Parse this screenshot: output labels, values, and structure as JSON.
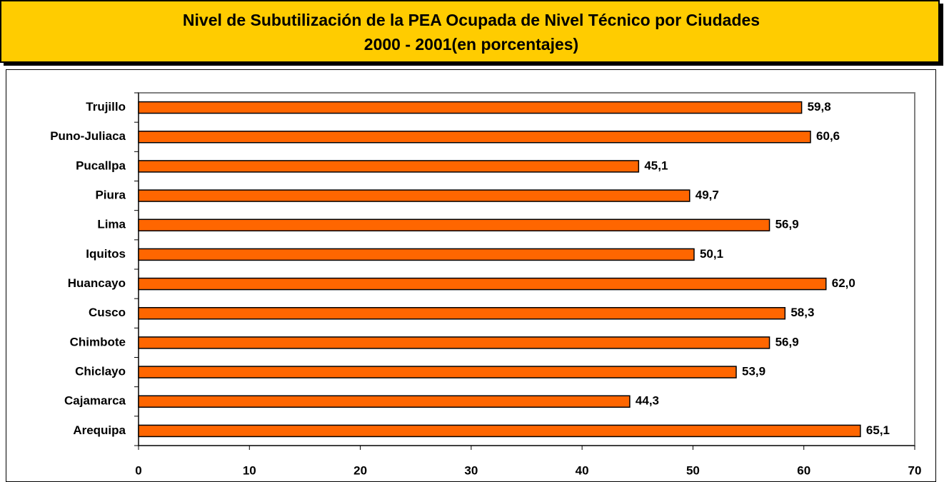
{
  "chart_data": {
    "type": "bar",
    "orientation": "horizontal",
    "title": "Nivel de Subutilización de la PEA Ocupada de Nivel Técnico por Ciudades",
    "subtitle": "2000 - 2001(en porcentajes)",
    "categories": [
      "Trujillo",
      "Puno-Juliaca",
      "Pucallpa",
      "Piura",
      "Lima",
      "Iquitos",
      "Huancayo",
      "Cusco",
      "Chimbote",
      "Chiclayo",
      "Cajamarca",
      "Arequipa"
    ],
    "values": [
      59.8,
      60.6,
      45.1,
      49.7,
      56.9,
      50.1,
      62.0,
      58.3,
      56.9,
      53.9,
      44.3,
      65.1
    ],
    "value_labels": [
      "59,8",
      "60,6",
      "45,1",
      "49,7",
      "56,9",
      "50,1",
      "62,0",
      "58,3",
      "56,9",
      "53,9",
      "44,3",
      "65,1"
    ],
    "color": "#ff6600",
    "xlim": [
      0,
      70
    ],
    "xticks": [
      0,
      10,
      20,
      30,
      40,
      50,
      60,
      70
    ],
    "grid": false
  }
}
